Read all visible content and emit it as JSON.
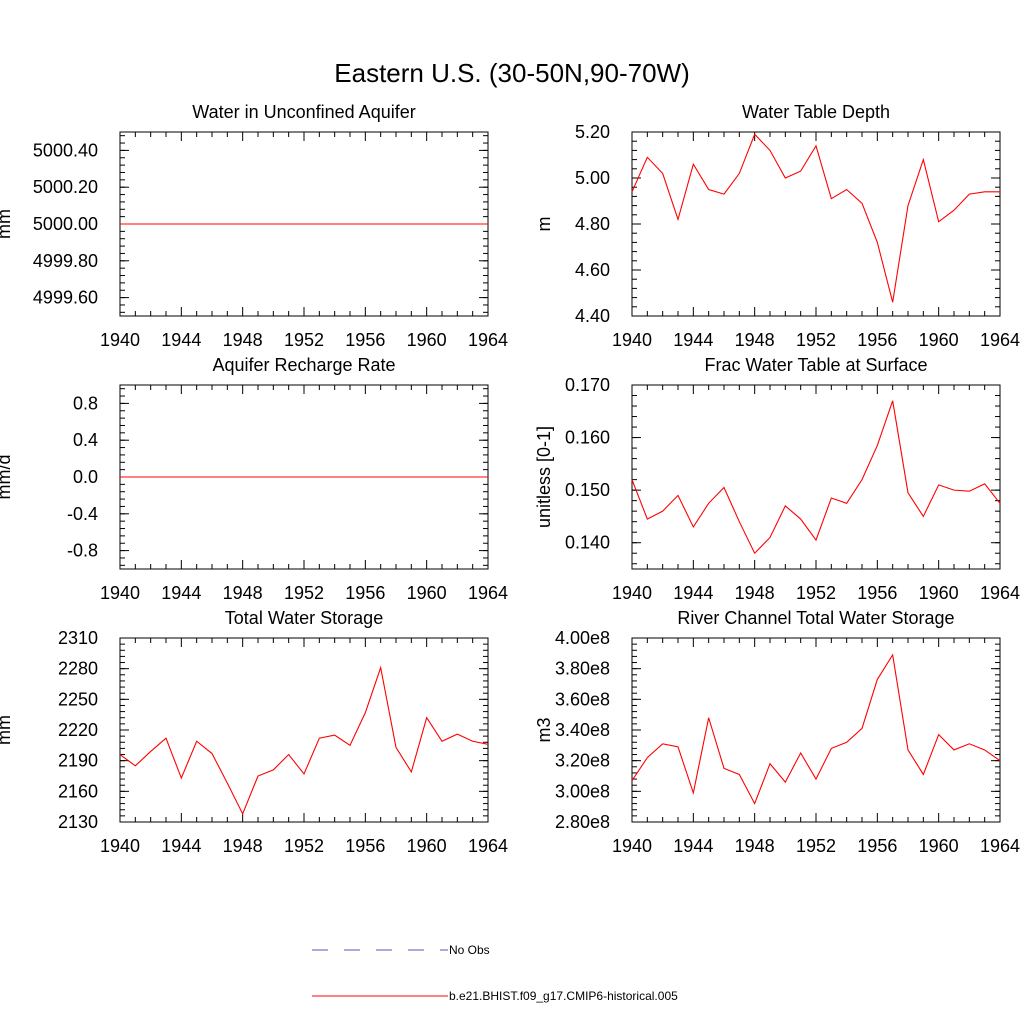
{
  "title": "Eastern U.S. (30-50N,90-70W)",
  "colors": {
    "model": "#ff0000",
    "obs": "#5a5ab4",
    "axis": "#000000"
  },
  "legend": {
    "placement": "bottom-center",
    "items": [
      {
        "label": "No Obs",
        "style": "dashed",
        "color": "#5a5ab4"
      },
      {
        "label": "b.e21.BHIST.f09_g17.CMIP6-historical.005",
        "style": "solid",
        "color": "#ff0000"
      }
    ]
  },
  "chart_data": [
    {
      "type": "line",
      "title": "Water in Unconfined Aquifer",
      "xlabel": "",
      "ylabel": "mm",
      "xlim": [
        1940,
        1964
      ],
      "xticks": [
        "1940",
        "1944",
        "1948",
        "1952",
        "1956",
        "1960",
        "1964"
      ],
      "ylim": [
        4999.5,
        5000.5
      ],
      "yticks": [
        "4999.60",
        "4999.80",
        "5000.00",
        "5000.20",
        "5000.40"
      ],
      "grid": false,
      "x": [
        1940,
        1941,
        1942,
        1943,
        1944,
        1945,
        1946,
        1947,
        1948,
        1949,
        1950,
        1951,
        1952,
        1953,
        1954,
        1955,
        1956,
        1957,
        1958,
        1959,
        1960,
        1961,
        1962,
        1963,
        1964
      ],
      "series": [
        {
          "name": "b.e21.BHIST.f09_g17.CMIP6-historical.005",
          "values": [
            5000.0,
            5000.0,
            5000.0,
            5000.0,
            5000.0,
            5000.0,
            5000.0,
            5000.0,
            5000.0,
            5000.0,
            5000.0,
            5000.0,
            5000.0,
            5000.0,
            5000.0,
            5000.0,
            5000.0,
            5000.0,
            5000.0,
            5000.0,
            5000.0,
            5000.0,
            5000.0,
            5000.0,
            5000.0
          ]
        }
      ]
    },
    {
      "type": "line",
      "title": "Water Table Depth",
      "xlabel": "",
      "ylabel": "m",
      "xlim": [
        1940,
        1964
      ],
      "xticks": [
        "1940",
        "1944",
        "1948",
        "1952",
        "1956",
        "1960",
        "1964"
      ],
      "ylim": [
        4.4,
        5.2
      ],
      "yticks": [
        "4.40",
        "4.60",
        "4.80",
        "5.00",
        "5.20"
      ],
      "grid": false,
      "x": [
        1940,
        1941,
        1942,
        1943,
        1944,
        1945,
        1946,
        1947,
        1948,
        1949,
        1950,
        1951,
        1952,
        1953,
        1954,
        1955,
        1956,
        1957,
        1958,
        1959,
        1960,
        1961,
        1962,
        1963,
        1964
      ],
      "series": [
        {
          "name": "b.e21.BHIST.f09_g17.CMIP6-historical.005",
          "values": [
            4.94,
            5.09,
            5.02,
            4.82,
            5.06,
            4.95,
            4.93,
            5.02,
            5.19,
            5.12,
            5.0,
            5.03,
            5.14,
            4.91,
            4.95,
            4.89,
            4.72,
            4.46,
            4.88,
            5.08,
            4.81,
            4.86,
            4.93,
            4.94,
            4.94
          ]
        }
      ]
    },
    {
      "type": "line",
      "title": "Aquifer Recharge Rate",
      "xlabel": "",
      "ylabel": "mm/d",
      "xlim": [
        1940,
        1964
      ],
      "xticks": [
        "1940",
        "1944",
        "1948",
        "1952",
        "1956",
        "1960",
        "1964"
      ],
      "ylim": [
        -1.0,
        1.0
      ],
      "yticks": [
        "-0.8",
        "-0.4",
        "0.0",
        "0.4",
        "0.8"
      ],
      "grid": false,
      "x": [
        1940,
        1941,
        1942,
        1943,
        1944,
        1945,
        1946,
        1947,
        1948,
        1949,
        1950,
        1951,
        1952,
        1953,
        1954,
        1955,
        1956,
        1957,
        1958,
        1959,
        1960,
        1961,
        1962,
        1963,
        1964
      ],
      "series": [
        {
          "name": "b.e21.BHIST.f09_g17.CMIP6-historical.005",
          "values": [
            0,
            0,
            0,
            0,
            0,
            0,
            0,
            0,
            0,
            0,
            0,
            0,
            0,
            0,
            0,
            0,
            0,
            0,
            0,
            0,
            0,
            0,
            0,
            0,
            0
          ]
        }
      ]
    },
    {
      "type": "line",
      "title": "Frac Water Table at Surface",
      "xlabel": "",
      "ylabel": "unitless [0-1]",
      "xlim": [
        1940,
        1964
      ],
      "xticks": [
        "1940",
        "1944",
        "1948",
        "1952",
        "1956",
        "1960",
        "1964"
      ],
      "ylim": [
        0.135,
        0.17
      ],
      "yticks": [
        "0.140",
        "0.150",
        "0.160",
        "0.170"
      ],
      "grid": false,
      "x": [
        1940,
        1941,
        1942,
        1943,
        1944,
        1945,
        1946,
        1947,
        1948,
        1949,
        1950,
        1951,
        1952,
        1953,
        1954,
        1955,
        1956,
        1957,
        1958,
        1959,
        1960,
        1961,
        1962,
        1963,
        1964
      ],
      "series": [
        {
          "name": "b.e21.BHIST.f09_g17.CMIP6-historical.005",
          "values": [
            0.152,
            0.1445,
            0.146,
            0.149,
            0.143,
            0.1475,
            0.1505,
            0.144,
            0.138,
            0.141,
            0.147,
            0.1445,
            0.1405,
            0.1485,
            0.1475,
            0.152,
            0.1585,
            0.167,
            0.1495,
            0.145,
            0.151,
            0.15,
            0.1498,
            0.1512,
            0.1475
          ]
        }
      ]
    },
    {
      "type": "line",
      "title": "Total Water Storage",
      "xlabel": "",
      "ylabel": "mm",
      "xlim": [
        1940,
        1964
      ],
      "xticks": [
        "1940",
        "1944",
        "1948",
        "1952",
        "1956",
        "1960",
        "1964"
      ],
      "ylim": [
        2130,
        2310
      ],
      "yticks": [
        "2130",
        "2160",
        "2190",
        "2220",
        "2250",
        "2280",
        "2310"
      ],
      "grid": false,
      "x": [
        1940,
        1941,
        1942,
        1943,
        1944,
        1945,
        1946,
        1947,
        1948,
        1949,
        1950,
        1951,
        1952,
        1953,
        1954,
        1955,
        1956,
        1957,
        1958,
        1959,
        1960,
        1961,
        1962,
        1963,
        1964
      ],
      "series": [
        {
          "name": "b.e21.BHIST.f09_g17.CMIP6-historical.005",
          "values": [
            2196,
            2185,
            2199,
            2212,
            2173,
            2209,
            2197,
            2168,
            2138,
            2175,
            2181,
            2196,
            2177,
            2212,
            2215,
            2205,
            2237,
            2281,
            2203,
            2179,
            2232,
            2209,
            2216,
            2209,
            2206
          ]
        }
      ]
    },
    {
      "type": "line",
      "title": "River Channel Total Water Storage",
      "xlabel": "",
      "ylabel": "m3",
      "xlim": [
        1940,
        1964
      ],
      "xticks": [
        "1940",
        "1944",
        "1948",
        "1952",
        "1956",
        "1960",
        "1964"
      ],
      "ylim": [
        280000000,
        400000000
      ],
      "yticks": [
        "2.80e8",
        "3.00e8",
        "3.20e8",
        "3.40e8",
        "3.60e8",
        "3.80e8",
        "4.00e8"
      ],
      "grid": false,
      "x": [
        1940,
        1941,
        1942,
        1943,
        1944,
        1945,
        1946,
        1947,
        1948,
        1949,
        1950,
        1951,
        1952,
        1953,
        1954,
        1955,
        1956,
        1957,
        1958,
        1959,
        1960,
        1961,
        1962,
        1963,
        1964
      ],
      "series": [
        {
          "name": "b.e21.BHIST.f09_g17.CMIP6-historical.005",
          "values": [
            307000000,
            322000000,
            331000000,
            329000000,
            299000000,
            348000000,
            315000000,
            311000000,
            292000000,
            318000000,
            306000000,
            325000000,
            308000000,
            328000000,
            332000000,
            341000000,
            373000000,
            389000000,
            327000000,
            311000000,
            337000000,
            327000000,
            331000000,
            327000000,
            320000000
          ]
        }
      ]
    }
  ]
}
